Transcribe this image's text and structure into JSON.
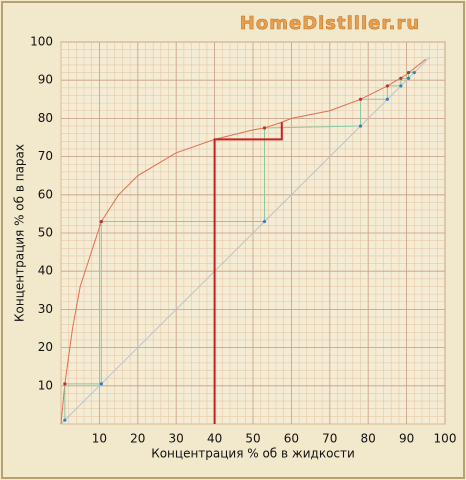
{
  "chart_data": {
    "type": "line",
    "title": "HomeDistiller.ru",
    "xlabel": "Концентрация % об в жидкости",
    "ylabel": "Концентрация % об в парах",
    "xlim": [
      0,
      100
    ],
    "ylim": [
      0,
      100
    ],
    "xticks": [
      10,
      20,
      30,
      40,
      50,
      60,
      70,
      80,
      90,
      100
    ],
    "yticks": [
      10,
      20,
      30,
      40,
      50,
      60,
      70,
      80,
      90,
      100
    ],
    "grid": true,
    "minor_grid": 2,
    "series": [
      {
        "color": "#b8c4d0",
        "x": [
          0,
          96
        ],
        "values": [
          0,
          96
        ]
      },
      {
        "color": "#e07050",
        "x": [
          0,
          1,
          3,
          5,
          10.5,
          15,
          20,
          30,
          40,
          50,
          53,
          57.5,
          60,
          70,
          78,
          85,
          90,
          95
        ],
        "values": [
          0,
          10.5,
          25,
          36,
          53,
          60,
          65,
          71,
          74.5,
          77,
          77.5,
          79,
          80,
          82,
          85,
          88.5,
          91.5,
          95.5
        ]
      },
      {
        "color": "#8cc8a0",
        "markers": true,
        "x": [
          1,
          1,
          10.5,
          10.5,
          53,
          53,
          78,
          78,
          85,
          85,
          88.5,
          88.5,
          90.5,
          90.5,
          92
        ],
        "values": [
          1,
          10.5,
          10.5,
          53,
          53,
          77.5,
          78,
          85,
          85,
          88.5,
          88.5,
          90.5,
          90.5,
          92,
          92
        ]
      },
      {
        "color": "#c82020",
        "width": 2,
        "x": [
          40,
          40,
          57.5,
          57.5
        ],
        "values": [
          0,
          74.5,
          74.5,
          79
        ]
      }
    ]
  }
}
